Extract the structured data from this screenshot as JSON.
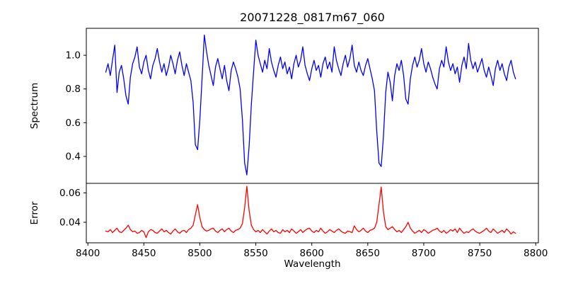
{
  "figure": {
    "background": "#ffffff",
    "axis_color": "#000000"
  },
  "chart_data": [
    {
      "type": "line",
      "title": "20071228_0817m67_060",
      "ylabel": "Spectrum",
      "xlabel": "",
      "grid": false,
      "legend": "none",
      "xlim": [
        8398.6,
        8802.4
      ],
      "ylim": [
        0.24,
        1.16
      ],
      "yticks": [
        1.0,
        0.8,
        0.6,
        0.4
      ],
      "ytick_labels": [
        "1.0",
        "0.8",
        "0.6",
        "0.4"
      ],
      "xticks": [],
      "xtick_labels": [],
      "series": [
        {
          "name": "spectrum",
          "color": "#0000ff",
          "x_start": 8416,
          "x_step": 2,
          "y": [
            0.9,
            0.95,
            0.88,
            0.97,
            1.06,
            0.78,
            0.9,
            0.94,
            0.86,
            0.76,
            0.71,
            0.87,
            0.95,
            0.99,
            1.05,
            0.93,
            0.89,
            0.96,
            1.0,
            0.91,
            0.86,
            0.94,
            0.98,
            1.04,
            0.96,
            0.9,
            0.95,
            0.88,
            0.93,
            1.0,
            0.95,
            0.89,
            0.97,
            1.02,
            0.94,
            0.88,
            0.95,
            0.9,
            0.85,
            0.72,
            0.47,
            0.44,
            0.62,
            0.86,
            1.12,
            1.02,
            0.94,
            0.88,
            0.82,
            0.93,
            0.98,
            0.92,
            0.86,
            0.94,
            0.85,
            0.79,
            0.91,
            0.96,
            0.92,
            0.87,
            0.8,
            0.62,
            0.36,
            0.29,
            0.46,
            0.71,
            0.9,
            1.09,
            1.0,
            0.95,
            0.9,
            0.97,
            0.92,
            1.04,
            0.96,
            0.91,
            0.87,
            0.94,
            0.99,
            0.92,
            0.96,
            0.89,
            0.93,
            0.86,
            0.95,
            1.0,
            0.93,
            0.97,
            1.05,
            0.94,
            0.89,
            0.85,
            0.92,
            0.97,
            0.91,
            0.94,
            0.87,
            0.95,
            0.99,
            0.92,
            0.96,
            0.9,
            1.05,
            0.97,
            0.92,
            0.88,
            0.95,
            1.0,
            0.93,
            0.98,
            1.06,
            0.94,
            0.9,
            0.96,
            0.91,
            0.88,
            0.94,
            0.98,
            0.92,
            0.86,
            0.79,
            0.55,
            0.36,
            0.34,
            0.52,
            0.78,
            0.9,
            0.84,
            0.73,
            0.88,
            0.95,
            0.91,
            0.97,
            0.88,
            0.74,
            0.71,
            0.86,
            0.94,
            0.99,
            0.93,
            0.97,
            1.04,
            0.95,
            0.9,
            0.96,
            0.92,
            0.87,
            0.83,
            0.8,
            0.92,
            0.97,
            0.93,
            1.05,
            0.96,
            0.91,
            0.95,
            0.89,
            0.93,
            0.84,
            0.94,
            0.99,
            0.92,
            1.07,
            0.97,
            0.92,
            0.96,
            0.9,
            0.94,
            0.98,
            0.91,
            0.87,
            0.93,
            0.88,
            0.82,
            0.92,
            0.97,
            0.91,
            0.95,
            0.89,
            0.85,
            0.93,
            0.97,
            0.9,
            0.86
          ]
        }
      ]
    },
    {
      "type": "line",
      "title": "",
      "ylabel": "Error",
      "xlabel": "Wavelength",
      "grid": false,
      "legend": "none",
      "xlim": [
        8398.6,
        8802.4
      ],
      "ylim": [
        0.026,
        0.0665
      ],
      "yticks": [
        0.06,
        0.04
      ],
      "ytick_labels": [
        "0.06",
        "0.04"
      ],
      "xticks": [
        8400,
        8450,
        8500,
        8550,
        8600,
        8650,
        8700,
        8750,
        8800
      ],
      "xtick_labels": [
        "8400",
        "8450",
        "8500",
        "8550",
        "8600",
        "8650",
        "8700",
        "8750",
        "8800"
      ],
      "series": [
        {
          "name": "error",
          "color": "#ff0000",
          "x_start": 8416,
          "x_step": 2,
          "y": [
            0.034,
            0.0335,
            0.035,
            0.033,
            0.0345,
            0.036,
            0.0335,
            0.033,
            0.0345,
            0.036,
            0.038,
            0.035,
            0.0335,
            0.034,
            0.0325,
            0.033,
            0.0345,
            0.0335,
            0.0295,
            0.0335,
            0.035,
            0.0345,
            0.033,
            0.0325,
            0.034,
            0.0355,
            0.0335,
            0.0345,
            0.033,
            0.032,
            0.034,
            0.0355,
            0.0335,
            0.0325,
            0.034,
            0.0345,
            0.033,
            0.035,
            0.036,
            0.038,
            0.045,
            0.052,
            0.043,
            0.037,
            0.035,
            0.034,
            0.0345,
            0.0355,
            0.036,
            0.034,
            0.033,
            0.0345,
            0.0355,
            0.0335,
            0.035,
            0.036,
            0.034,
            0.033,
            0.0345,
            0.035,
            0.036,
            0.039,
            0.05,
            0.0645,
            0.048,
            0.038,
            0.035,
            0.0335,
            0.0345,
            0.033,
            0.035,
            0.0335,
            0.032,
            0.034,
            0.0355,
            0.0335,
            0.0345,
            0.033,
            0.0325,
            0.035,
            0.0335,
            0.0345,
            0.033,
            0.0355,
            0.034,
            0.0325,
            0.0335,
            0.035,
            0.033,
            0.0345,
            0.0355,
            0.036,
            0.034,
            0.033,
            0.0345,
            0.0335,
            0.036,
            0.034,
            0.0325,
            0.0335,
            0.035,
            0.034,
            0.033,
            0.0345,
            0.0355,
            0.034,
            0.033,
            0.0325,
            0.034,
            0.0335,
            0.033,
            0.0375,
            0.035,
            0.0335,
            0.0345,
            0.036,
            0.034,
            0.033,
            0.0345,
            0.035,
            0.036,
            0.04,
            0.052,
            0.064,
            0.047,
            0.037,
            0.035,
            0.036,
            0.037,
            0.035,
            0.0335,
            0.0345,
            0.033,
            0.035,
            0.037,
            0.04,
            0.036,
            0.034,
            0.0325,
            0.0335,
            0.0345,
            0.033,
            0.035,
            0.034,
            0.0325,
            0.0335,
            0.0345,
            0.035,
            0.036,
            0.034,
            0.033,
            0.0345,
            0.0325,
            0.0335,
            0.035,
            0.034,
            0.0355,
            0.033,
            0.036,
            0.034,
            0.0325,
            0.0335,
            0.033,
            0.0345,
            0.0355,
            0.034,
            0.033,
            0.0325,
            0.0335,
            0.0345,
            0.036,
            0.034,
            0.033,
            0.0355,
            0.034,
            0.0325,
            0.0335,
            0.0345,
            0.033,
            0.0355,
            0.034,
            0.032,
            0.0335,
            0.0325
          ]
        }
      ]
    }
  ]
}
